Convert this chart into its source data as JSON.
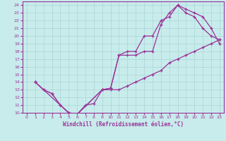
{
  "background_color": "#c8ecec",
  "grid_color": "#b0d8d8",
  "line_color": "#993399",
  "xlabel": "Windchill (Refroidissement éolien,°C)",
  "xlim": [
    -0.5,
    23.5
  ],
  "ylim": [
    10,
    24.5
  ],
  "xticks": [
    0,
    1,
    2,
    3,
    4,
    5,
    6,
    7,
    8,
    9,
    10,
    11,
    12,
    13,
    14,
    15,
    16,
    17,
    18,
    19,
    20,
    21,
    22,
    23
  ],
  "yticks": [
    10,
    11,
    12,
    13,
    14,
    15,
    16,
    17,
    18,
    19,
    20,
    21,
    22,
    23,
    24
  ],
  "line1_x": [
    1,
    2,
    3,
    4,
    5,
    6,
    7,
    8,
    9,
    10,
    11,
    12,
    13,
    14,
    15,
    16,
    17,
    18,
    19,
    20,
    21,
    22,
    23
  ],
  "line1_y": [
    14,
    13,
    12.5,
    11,
    10,
    9.8,
    11,
    11.2,
    13,
    13.2,
    17.5,
    18,
    18,
    20,
    20,
    22,
    22.5,
    24,
    23,
    22.5,
    21,
    20,
    19.5
  ],
  "line2_x": [
    1,
    2,
    3,
    4,
    5,
    6,
    9,
    10,
    11,
    12,
    13,
    14,
    15,
    16,
    17,
    18,
    19,
    20,
    21,
    22,
    23
  ],
  "line2_y": [
    14,
    13,
    12.5,
    11,
    10,
    9.8,
    13,
    13.2,
    17.5,
    17.5,
    17.5,
    18,
    18,
    21.5,
    23,
    24,
    23.5,
    23,
    22.5,
    21,
    19
  ],
  "line3_x": [
    1,
    5,
    6,
    9,
    10,
    11,
    12,
    13,
    14,
    15,
    16,
    17,
    18,
    19,
    20,
    21,
    22,
    23
  ],
  "line3_y": [
    14,
    10,
    9.8,
    13,
    13,
    13,
    13.5,
    14,
    14.5,
    15,
    15.5,
    16.5,
    17,
    17.5,
    18,
    18.5,
    19,
    19.5
  ]
}
